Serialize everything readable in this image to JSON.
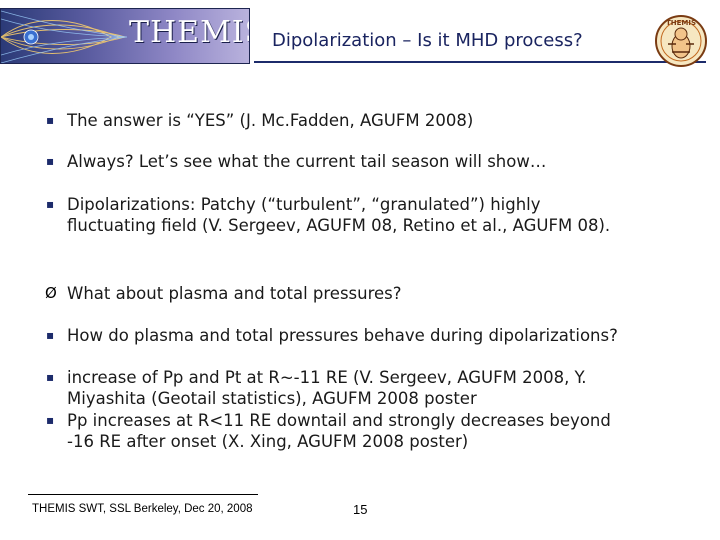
{
  "header": {
    "logo_text": "THEMIS",
    "title": "Dipolarization – Is it MHD process?",
    "mascot_text": "THEMIS"
  },
  "bullets": [
    {
      "marker": "▪",
      "text": "The answer is “YES” (J. Mc.Fadden, AGUFM 2008)"
    },
    {
      "marker": "▪",
      "text": "Always? Let’s see what the current tail season will show…"
    },
    {
      "marker": "▪",
      "text": "Dipolarizations: Patchy (“turbulent”, “granulated”) highly fluctuating field (V. Sergeev, AGUFM 08, Retino et al., AGUFM 08)."
    },
    {
      "marker": "Ø",
      "text": "What about plasma and total pressures?"
    },
    {
      "marker": "▪",
      "text": "How do plasma and total pressures behave during dipolarizations?"
    },
    {
      "marker": "▪",
      "text": "increase of Pp and Pt at R~-11 RE (V. Sergeev, AGUFM 2008,  Y. Miyashita (Geotail statistics), AGUFM 2008 poster"
    },
    {
      "marker": "▪",
      "text": "Pp increases at R<11 RE downtail and strongly decreases beyond -16 RE after onset (X. Xing, AGUFM 2008 poster)"
    }
  ],
  "footer": {
    "text": "THEMIS SWT, SSL Berkeley, Dec 20, 2008",
    "page_number": "15"
  }
}
